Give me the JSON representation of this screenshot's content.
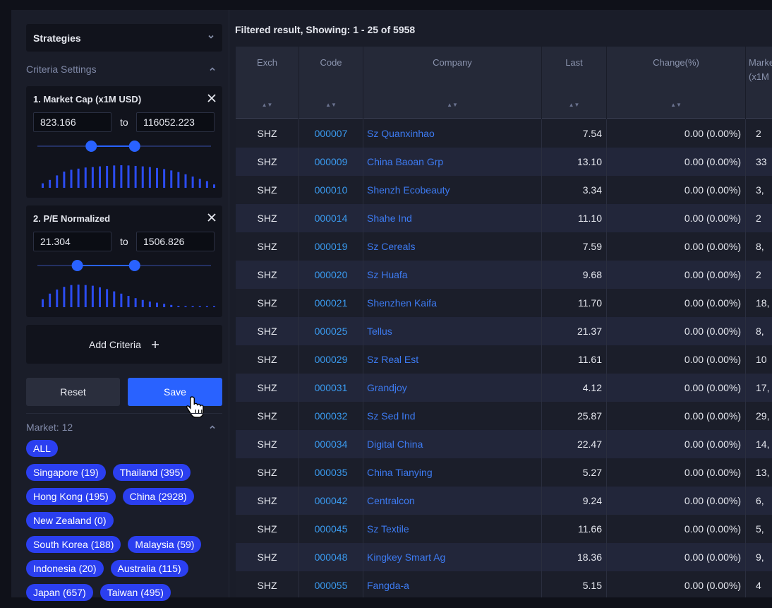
{
  "sidebar": {
    "strategies_label": "Strategies",
    "criteria_settings_label": "Criteria Settings",
    "criteria": [
      {
        "title": "1. Market Cap (x1M USD)",
        "min": "823.166",
        "max": "116052.223",
        "to_label": "to",
        "slider_low": 0.31,
        "slider_high": 0.56,
        "histogram": [
          0.2,
          0.35,
          0.55,
          0.72,
          0.8,
          0.85,
          0.9,
          0.92,
          0.95,
          0.97,
          0.99,
          1.0,
          0.99,
          0.97,
          0.95,
          0.92,
          0.88,
          0.83,
          0.77,
          0.7,
          0.6,
          0.5,
          0.4,
          0.3,
          0.15
        ]
      },
      {
        "title": "2. P/E Normalized",
        "min": "21.304",
        "max": "1506.826",
        "to_label": "to",
        "slider_low": 0.23,
        "slider_high": 0.56,
        "histogram": [
          0.35,
          0.6,
          0.78,
          0.9,
          0.98,
          1.0,
          0.98,
          0.95,
          0.88,
          0.8,
          0.7,
          0.6,
          0.5,
          0.4,
          0.32,
          0.25,
          0.2,
          0.15,
          0.1,
          0.06,
          0.04,
          0.02,
          0.01,
          0.005,
          0.002
        ]
      }
    ],
    "add_criteria_label": "Add Criteria",
    "reset_label": "Reset",
    "save_label": "Save",
    "market_label": "Market: 12",
    "markets": [
      "ALL",
      "Singapore (19)",
      "Thailand (395)",
      "Hong Kong (195)",
      "China (2928)",
      "New Zealand (0)",
      "South Korea (188)",
      "Malaysia (59)",
      "Indonesia (20)",
      "Australia (115)",
      "Japan (657)",
      "Taiwan (495)"
    ]
  },
  "results": {
    "summary": "Filtered result, Showing: 1 - 25 of 5958",
    "columns": [
      "Exch",
      "Code",
      "Company",
      "Last",
      "Change(%)",
      "Marke (x1M"
    ],
    "rows": [
      [
        "SHZ",
        "000007",
        "Sz Quanxinhao",
        "7.54",
        "0.00 (0.00%)",
        "2"
      ],
      [
        "SHZ",
        "000009",
        "China Baoan Grp",
        "13.10",
        "0.00 (0.00%)",
        "33"
      ],
      [
        "SHZ",
        "000010",
        "Shenzh Ecobeauty",
        "3.34",
        "0.00 (0.00%)",
        "3,"
      ],
      [
        "SHZ",
        "000014",
        "Shahe Ind",
        "11.10",
        "0.00 (0.00%)",
        "2"
      ],
      [
        "SHZ",
        "000019",
        "Sz Cereals",
        "7.59",
        "0.00 (0.00%)",
        "8,"
      ],
      [
        "SHZ",
        "000020",
        "Sz Huafa",
        "9.68",
        "0.00 (0.00%)",
        "2"
      ],
      [
        "SHZ",
        "000021",
        "Shenzhen Kaifa",
        "11.70",
        "0.00 (0.00%)",
        "18,"
      ],
      [
        "SHZ",
        "000025",
        "Tellus",
        "21.37",
        "0.00 (0.00%)",
        "8,"
      ],
      [
        "SHZ",
        "000029",
        "Sz Real Est",
        "11.61",
        "0.00 (0.00%)",
        "10"
      ],
      [
        "SHZ",
        "000031",
        "Grandjoy",
        "4.12",
        "0.00 (0.00%)",
        "17,"
      ],
      [
        "SHZ",
        "000032",
        "Sz Sed Ind",
        "25.87",
        "0.00 (0.00%)",
        "29,"
      ],
      [
        "SHZ",
        "000034",
        "Digital China",
        "22.47",
        "0.00 (0.00%)",
        "14,"
      ],
      [
        "SHZ",
        "000035",
        "China Tianying",
        "5.27",
        "0.00 (0.00%)",
        "13,"
      ],
      [
        "SHZ",
        "000042",
        "Centralcon",
        "9.24",
        "0.00 (0.00%)",
        "6,"
      ],
      [
        "SHZ",
        "000045",
        "Sz Textile",
        "11.66",
        "0.00 (0.00%)",
        "5,"
      ],
      [
        "SHZ",
        "000048",
        "Kingkey Smart Ag",
        "18.36",
        "0.00 (0.00%)",
        "9,"
      ],
      [
        "SHZ",
        "000055",
        "Fangda-a",
        "5.15",
        "0.00 (0.00%)",
        "4"
      ]
    ]
  },
  "colors": {
    "accent": "#2962ff",
    "pill": "#2b3ff0",
    "link": "#3d7bf2",
    "code": "#3a9bf0"
  }
}
